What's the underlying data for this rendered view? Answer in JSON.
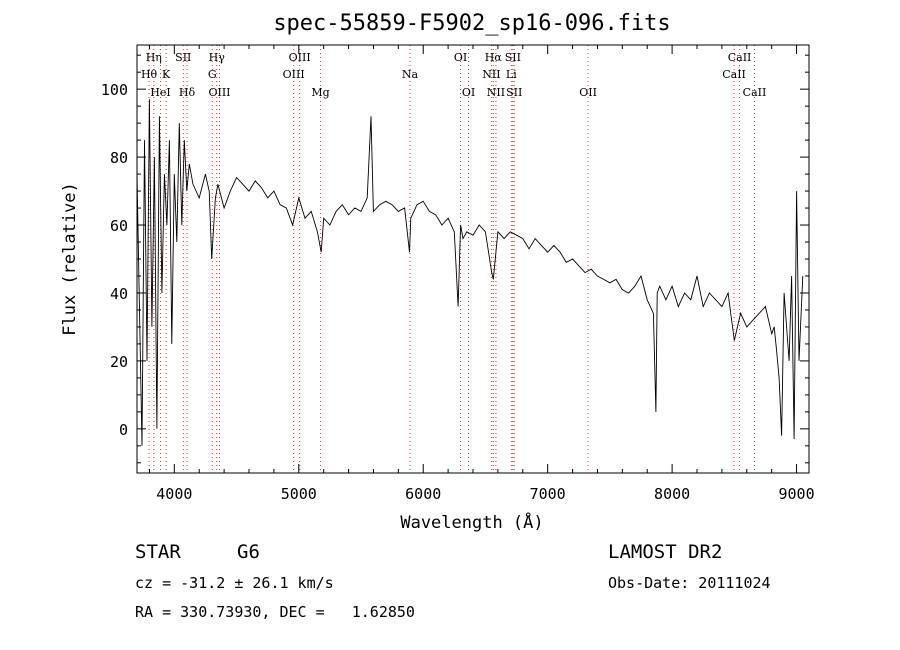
{
  "chart_data": {
    "type": "line",
    "title": "spec-55859-F5902_sp16-096.fits",
    "xlabel": "Wavelength (Å)",
    "ylabel": "Flux (relative)",
    "xlim": [
      3700,
      9100
    ],
    "ylim": [
      -13,
      113
    ],
    "xticks": [
      4000,
      5000,
      6000,
      7000,
      8000,
      9000
    ],
    "yticks": [
      0,
      20,
      40,
      60,
      80,
      100
    ],
    "grid": false,
    "line_color": "#000000",
    "marker_color": "#cc3333",
    "line_markers": [
      {
        "label": "Hη",
        "x": 3835,
        "row": 1
      },
      {
        "label": "Hθ",
        "x": 3797,
        "row": 2
      },
      {
        "label": "K",
        "x": 3934,
        "row": 2
      },
      {
        "label": "SII",
        "x": 4072,
        "row": 1
      },
      {
        "label": "HeI",
        "x": 3889,
        "row": 3
      },
      {
        "label": "Hδ",
        "x": 4102,
        "row": 3
      },
      {
        "label": "Hγ",
        "x": 4341,
        "row": 1
      },
      {
        "label": "G",
        "x": 4305,
        "row": 2
      },
      {
        "label": "OIII",
        "x": 4363,
        "row": 3
      },
      {
        "label": "OIII",
        "x": 5007,
        "row": 1
      },
      {
        "label": "OIII",
        "x": 4959,
        "row": 2
      },
      {
        "label": "Mg",
        "x": 5175,
        "row": 3
      },
      {
        "label": "Na",
        "x": 5893,
        "row": 2
      },
      {
        "label": "OI",
        "x": 6300,
        "row": 1
      },
      {
        "label": "OI",
        "x": 6364,
        "row": 3
      },
      {
        "label": "Hα",
        "x": 6563,
        "row": 1
      },
      {
        "label": "SII",
        "x": 6720,
        "row": 1
      },
      {
        "label": "NII",
        "x": 6548,
        "row": 2
      },
      {
        "label": "Li",
        "x": 6708,
        "row": 2
      },
      {
        "label": "NII",
        "x": 6584,
        "row": 3
      },
      {
        "label": "SII",
        "x": 6731,
        "row": 3
      },
      {
        "label": "OII",
        "x": 7325,
        "row": 3
      },
      {
        "label": "CaII",
        "x": 8542,
        "row": 1
      },
      {
        "label": "CaII",
        "x": 8498,
        "row": 2
      },
      {
        "label": "CaII",
        "x": 8662,
        "row": 3
      }
    ],
    "series": [
      {
        "x": [
          3700,
          3720,
          3740,
          3760,
          3780,
          3800,
          3820,
          3840,
          3860,
          3880,
          3900,
          3920,
          3940,
          3960,
          3980,
          4000,
          4020,
          4040,
          4060,
          4080,
          4100,
          4120,
          4150,
          4200,
          4250,
          4280,
          4300,
          4330,
          4350,
          4400,
          4450,
          4500,
          4550,
          4600,
          4650,
          4700,
          4750,
          4800,
          4850,
          4900,
          4950,
          5000,
          5050,
          5100,
          5150,
          5180,
          5200,
          5250,
          5300,
          5350,
          5400,
          5450,
          5500,
          5550,
          5580,
          5600,
          5650,
          5700,
          5750,
          5800,
          5850,
          5890,
          5900,
          5950,
          6000,
          6050,
          6100,
          6150,
          6200,
          6250,
          6280,
          6300,
          6320,
          6350,
          6400,
          6450,
          6500,
          6550,
          6563,
          6600,
          6650,
          6700,
          6750,
          6800,
          6850,
          6900,
          6950,
          7000,
          7050,
          7100,
          7150,
          7200,
          7250,
          7300,
          7350,
          7400,
          7450,
          7500,
          7550,
          7600,
          7650,
          7700,
          7750,
          7800,
          7850,
          7870,
          7880,
          7900,
          7950,
          8000,
          8050,
          8100,
          8150,
          8200,
          8250,
          8300,
          8350,
          8400,
          8450,
          8500,
          8550,
          8600,
          8650,
          8700,
          8750,
          8800,
          8820,
          8840,
          8860,
          8880,
          8900,
          8920,
          8940,
          8960,
          8980,
          9000,
          9020,
          9050
        ],
        "y": [
          75,
          35,
          -5,
          85,
          20,
          97,
          30,
          80,
          0,
          92,
          40,
          75,
          60,
          85,
          25,
          75,
          55,
          90,
          60,
          85,
          70,
          78,
          72,
          68,
          75,
          70,
          50,
          68,
          72,
          65,
          70,
          74,
          72,
          70,
          73,
          71,
          68,
          70,
          66,
          65,
          60,
          68,
          62,
          64,
          58,
          52,
          62,
          60,
          64,
          66,
          63,
          65,
          64,
          68,
          92,
          64,
          66,
          67,
          66,
          64,
          65,
          52,
          62,
          66,
          67,
          64,
          63,
          60,
          62,
          58,
          36,
          60,
          56,
          58,
          57,
          60,
          58,
          46,
          44,
          58,
          56,
          58,
          57,
          56,
          53,
          56,
          54,
          52,
          54,
          52,
          49,
          50,
          48,
          46,
          47,
          45,
          44,
          43,
          44,
          41,
          40,
          42,
          45,
          38,
          34,
          5,
          40,
          42,
          38,
          42,
          36,
          40,
          38,
          45,
          36,
          40,
          38,
          36,
          40,
          26,
          34,
          30,
          32,
          34,
          36,
          28,
          30,
          23,
          15,
          -2,
          40,
          30,
          20,
          45,
          -3,
          70,
          20,
          45
        ]
      }
    ],
    "info": {
      "object_class": "STAR",
      "subclass": "G6",
      "survey": "LAMOST DR2",
      "cz": "cz = -31.2 ± 26.1 km/s",
      "obs_date": "Obs-Date: 20111024",
      "coords": "RA = 330.73930, DEC =   1.62850"
    }
  }
}
